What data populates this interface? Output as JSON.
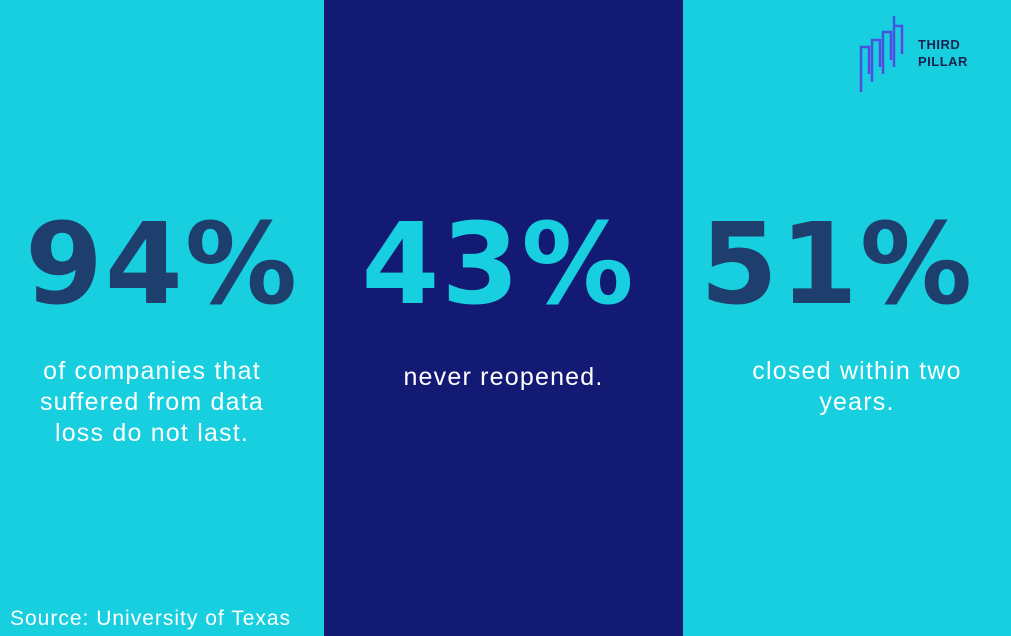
{
  "logo": {
    "lines": [
      "THIRD",
      "PILLAR"
    ]
  },
  "panels": [
    {
      "stat": "94%",
      "caption": [
        "of companies that",
        "suffered from data",
        "loss do not last."
      ]
    },
    {
      "stat": "43%",
      "caption": [
        "never reopened."
      ]
    },
    {
      "stat": "51%",
      "caption": [
        "closed within two",
        "years."
      ]
    }
  ],
  "source": "Source: University of Texas"
}
